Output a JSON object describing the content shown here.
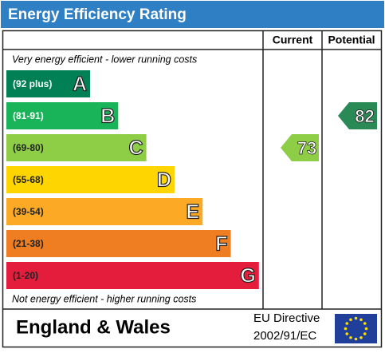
{
  "header": {
    "title": "Energy Efficiency Rating"
  },
  "columns": {
    "current": "Current",
    "potential": "Potential"
  },
  "top_note": "Very energy efficient - lower running costs",
  "bottom_note": "Not energy efficient - higher running costs",
  "bands": [
    {
      "range": "(92 plus)",
      "letter": "A",
      "color": "#008054"
    },
    {
      "range": "(81-91)",
      "letter": "B",
      "color": "#19b459"
    },
    {
      "range": "(69-80)",
      "letter": "C",
      "color": "#8dce46"
    },
    {
      "range": "(55-68)",
      "letter": "D",
      "color": "#ffd500"
    },
    {
      "range": "(39-54)",
      "letter": "E",
      "color": "#fcaa25"
    },
    {
      "range": "(21-38)",
      "letter": "F",
      "color": "#ef7d22"
    },
    {
      "range": "(1-20)",
      "letter": "G",
      "color": "#e31d3b"
    }
  ],
  "current": {
    "value": "73",
    "band": 2,
    "color": "#8dce46"
  },
  "potential": {
    "value": "82",
    "band": 1,
    "color": "#2a8a55"
  },
  "footer": {
    "region": "England & Wales",
    "directive_line1": "EU Directive",
    "directive_line2": "2002/91/EC"
  }
}
